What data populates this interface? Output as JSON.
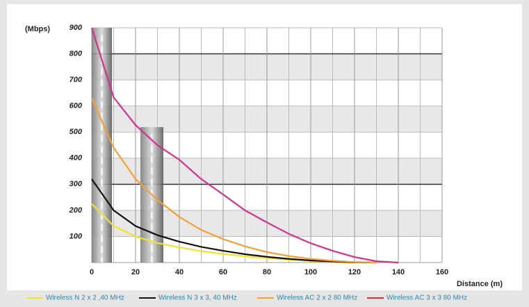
{
  "chart_data": {
    "type": "line",
    "y_label": "(Mbps)",
    "x_label": "Distance  (m)",
    "x": [
      0,
      10,
      20,
      30,
      40,
      50,
      60,
      70,
      80,
      90,
      100,
      110,
      120,
      130,
      140
    ],
    "series": [
      {
        "name": "Wireless N 2 x 2 ,40 MHz",
        "color": "#f2e22a",
        "legend_color": "#f2e22a",
        "values": [
          225,
          140,
          100,
          75,
          58,
          44,
          33,
          24,
          17,
          11,
          6,
          2,
          0,
          null,
          null
        ]
      },
      {
        "name": "Wireless N 3 x 3, 40 MHz",
        "color": "#111111",
        "legend_color": "#111111",
        "values": [
          320,
          200,
          140,
          105,
          80,
          60,
          45,
          32,
          22,
          14,
          8,
          4,
          1,
          0,
          null
        ]
      },
      {
        "name": "Wireless AC 2 x 2 80 MHz",
        "color": "#f5a030",
        "legend_color": "#f5a030",
        "values": [
          630,
          440,
          320,
          240,
          175,
          125,
          90,
          62,
          40,
          25,
          14,
          7,
          2,
          0,
          null
        ]
      },
      {
        "name": "Wireless AC 3 x 3 80 MHz",
        "color": "#d4308c",
        "legend_color": "#e02a36",
        "values": [
          900,
          633,
          527,
          450,
          394,
          320,
          261,
          200,
          154,
          110,
          74,
          45,
          21,
          5,
          0
        ]
      }
    ],
    "xlim": [
      0,
      160
    ],
    "xticks": [
      0,
      20,
      40,
      60,
      80,
      100,
      120,
      140,
      160
    ],
    "ylim": [
      0,
      900
    ],
    "yticks": [
      100,
      200,
      300,
      400,
      500,
      600,
      700,
      800,
      900
    ],
    "grid": true
  }
}
